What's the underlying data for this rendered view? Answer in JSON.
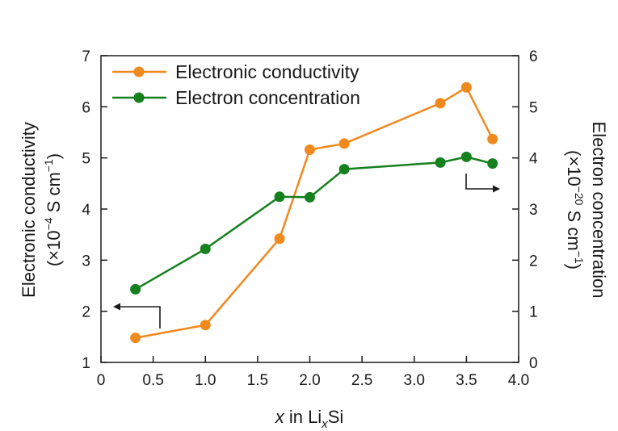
{
  "chart_data": {
    "type": "line",
    "xlabel": {
      "var": "x",
      "mid": " in Li",
      "sub": "x",
      "end": "Si"
    },
    "ylabel_left": {
      "line1": "Electronic conductivity",
      "line2_pre": "(×10",
      "line2_sup": "−4",
      "line2_mid": " S cm",
      "line2_sup2": "−1",
      "line2_end": ")"
    },
    "ylabel_right": {
      "line1": "Electron concentration",
      "line2_pre": "(×10",
      "line2_sup": "−20",
      "line2_mid": " S cm",
      "line2_sup2": "−1",
      "line2_end": ")"
    },
    "xlim": [
      0,
      4.0
    ],
    "ylim_left": [
      1,
      7
    ],
    "ylim_right": [
      0,
      6
    ],
    "x_ticks": [
      "0",
      "0.5",
      "1.0",
      "1.5",
      "2.0",
      "2.5",
      "3.0",
      "3.5",
      "4.0"
    ],
    "y_left_ticks": [
      "1",
      "2",
      "3",
      "4",
      "5",
      "6",
      "7"
    ],
    "y_right_ticks": [
      "0",
      "1",
      "2",
      "3",
      "4",
      "5",
      "6"
    ],
    "legend_position": "top-left",
    "grid": false,
    "series": [
      {
        "name": "Electronic conductivity",
        "axis": "left",
        "color": "#f0891e",
        "x": [
          0.33,
          1.0,
          1.71,
          2.0,
          2.33,
          3.25,
          3.5,
          3.75
        ],
        "y": [
          1.48,
          1.73,
          3.42,
          5.16,
          5.28,
          6.07,
          6.38,
          5.37
        ]
      },
      {
        "name": "Electron concentration",
        "axis": "right",
        "color": "#15801e",
        "x": [
          0.33,
          1.0,
          1.71,
          2.0,
          2.33,
          3.25,
          3.5,
          3.75
        ],
        "y": [
          1.43,
          2.22,
          3.24,
          3.23,
          3.78,
          3.91,
          4.02,
          3.89
        ]
      }
    ]
  }
}
